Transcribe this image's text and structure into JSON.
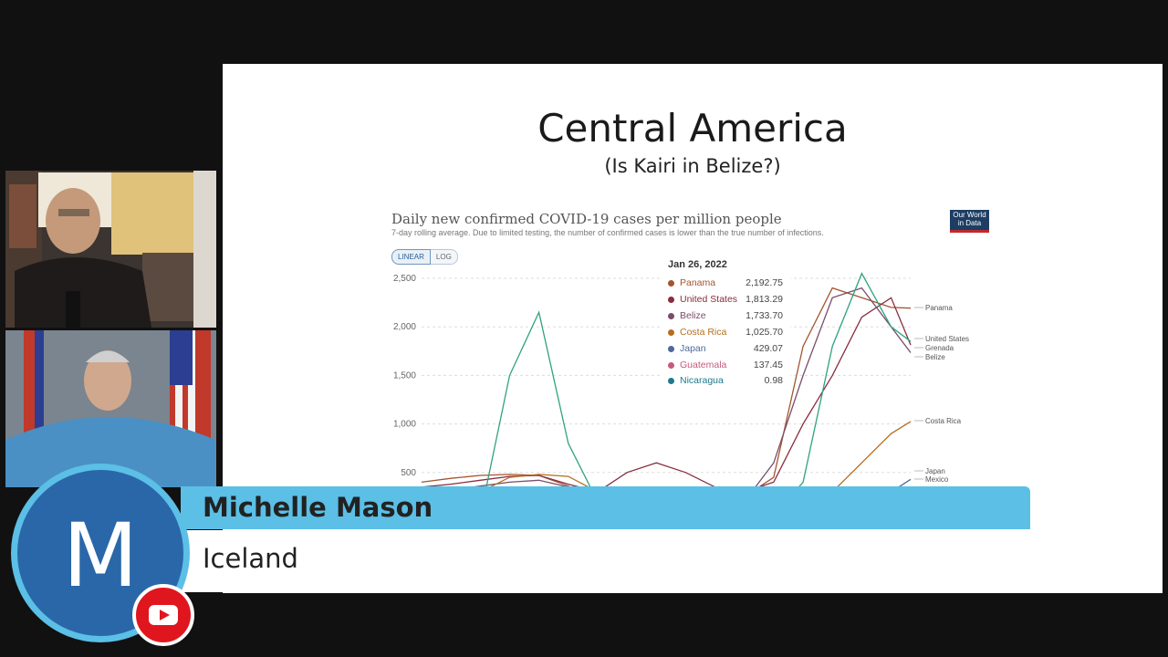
{
  "slide": {
    "title": "Central America",
    "subtitle": "(Is Kairi in Belize?)"
  },
  "chart_data": {
    "type": "line",
    "title": "Daily new confirmed COVID-19 cases per million people",
    "subtitle": "7-day rolling average. Due to limited testing, the number of confirmed cases is lower than the true number of infections.",
    "logo": "Our World in Data",
    "scale_options": [
      "LINEAR",
      "LOG"
    ],
    "selected_scale": "LINEAR",
    "y_ticks": [
      "2,500",
      "2,000",
      "1,500",
      "1,000",
      "500"
    ],
    "ylim": [
      0,
      2600
    ],
    "x": [
      0,
      6,
      12,
      18,
      24,
      30,
      36,
      42,
      48,
      54,
      60,
      66,
      72,
      78,
      84,
      90,
      96,
      100
    ],
    "series": [
      {
        "name": "Panama",
        "color": "#a3562e",
        "end_label": "Panama",
        "values": [
          400,
          440,
          470,
          480,
          470,
          360,
          200,
          150,
          120,
          110,
          150,
          250,
          450,
          1800,
          2400,
          2300,
          2200,
          2192.75
        ]
      },
      {
        "name": "United States",
        "color": "#8b2b3f",
        "end_label": "United States",
        "values": [
          350,
          380,
          420,
          460,
          470,
          380,
          300,
          500,
          600,
          500,
          350,
          300,
          400,
          1000,
          1500,
          2100,
          2300,
          1813.29
        ]
      },
      {
        "name": "Belize",
        "color": "#7b4d6b",
        "end_label": "Belize",
        "values": [
          300,
          320,
          360,
          400,
          420,
          350,
          280,
          250,
          220,
          200,
          180,
          200,
          600,
          1500,
          2300,
          2400,
          2000,
          1733.7
        ]
      },
      {
        "name": "Costa Rica",
        "color": "#b76d1d",
        "end_label": "Costa Rica",
        "values": [
          200,
          220,
          300,
          450,
          480,
          460,
          300,
          200,
          150,
          130,
          120,
          150,
          200,
          250,
          300,
          600,
          900,
          1025.7
        ]
      },
      {
        "name": "Japan",
        "color": "#4c6a9c",
        "end_label": "Japan",
        "values": [
          30,
          40,
          30,
          50,
          40,
          60,
          30,
          20,
          30,
          40,
          30,
          20,
          40,
          30,
          50,
          100,
          300,
          429.07
        ]
      },
      {
        "name": "Guatemala",
        "color": "#c85a7c",
        "end_label": "",
        "values": [
          100,
          120,
          130,
          150,
          160,
          140,
          120,
          110,
          100,
          90,
          80,
          90,
          100,
          110,
          120,
          130,
          135,
          137.45
        ]
      },
      {
        "name": "Nicaragua",
        "color": "#1d7a8c",
        "end_label": "",
        "values": [
          5,
          4,
          3,
          4,
          5,
          4,
          3,
          2,
          2,
          2,
          1,
          1,
          1,
          1,
          1,
          1,
          1,
          0.98
        ]
      },
      {
        "name": "Grenada",
        "color": "#2fa27f",
        "end_label": "Grenada",
        "values": [
          0,
          10,
          50,
          1500,
          2150,
          800,
          200,
          100,
          80,
          60,
          40,
          30,
          50,
          400,
          1800,
          2550,
          2000,
          1850
        ]
      }
    ],
    "extra_end_labels": [
      "Mexico"
    ],
    "tooltip": {
      "date": "Jan 26, 2022",
      "rows": [
        {
          "name": "Panama",
          "value": "2,192.75",
          "color": "#a3562e"
        },
        {
          "name": "United States",
          "value": "1,813.29",
          "color": "#8b2b3f"
        },
        {
          "name": "Belize",
          "value": "1,733.70",
          "color": "#7b4d6b"
        },
        {
          "name": "Costa Rica",
          "value": "1,025.70",
          "color": "#b76d1d"
        },
        {
          "name": "Japan",
          "value": "429.07",
          "color": "#4c6a9c"
        },
        {
          "name": "Guatemala",
          "value": "137.45",
          "color": "#c85a7c"
        },
        {
          "name": "Nicaragua",
          "value": "0.98",
          "color": "#1d7a8c"
        }
      ]
    }
  },
  "lower_third": {
    "name": "Michelle Mason",
    "location": "Iceland"
  },
  "logo": {
    "letter": "M",
    "badge_icon": "youtube-icon"
  },
  "colors": {
    "accent": "#5bbfe6",
    "logo_fill": "#2a67a8",
    "badge": "#e0161f"
  }
}
